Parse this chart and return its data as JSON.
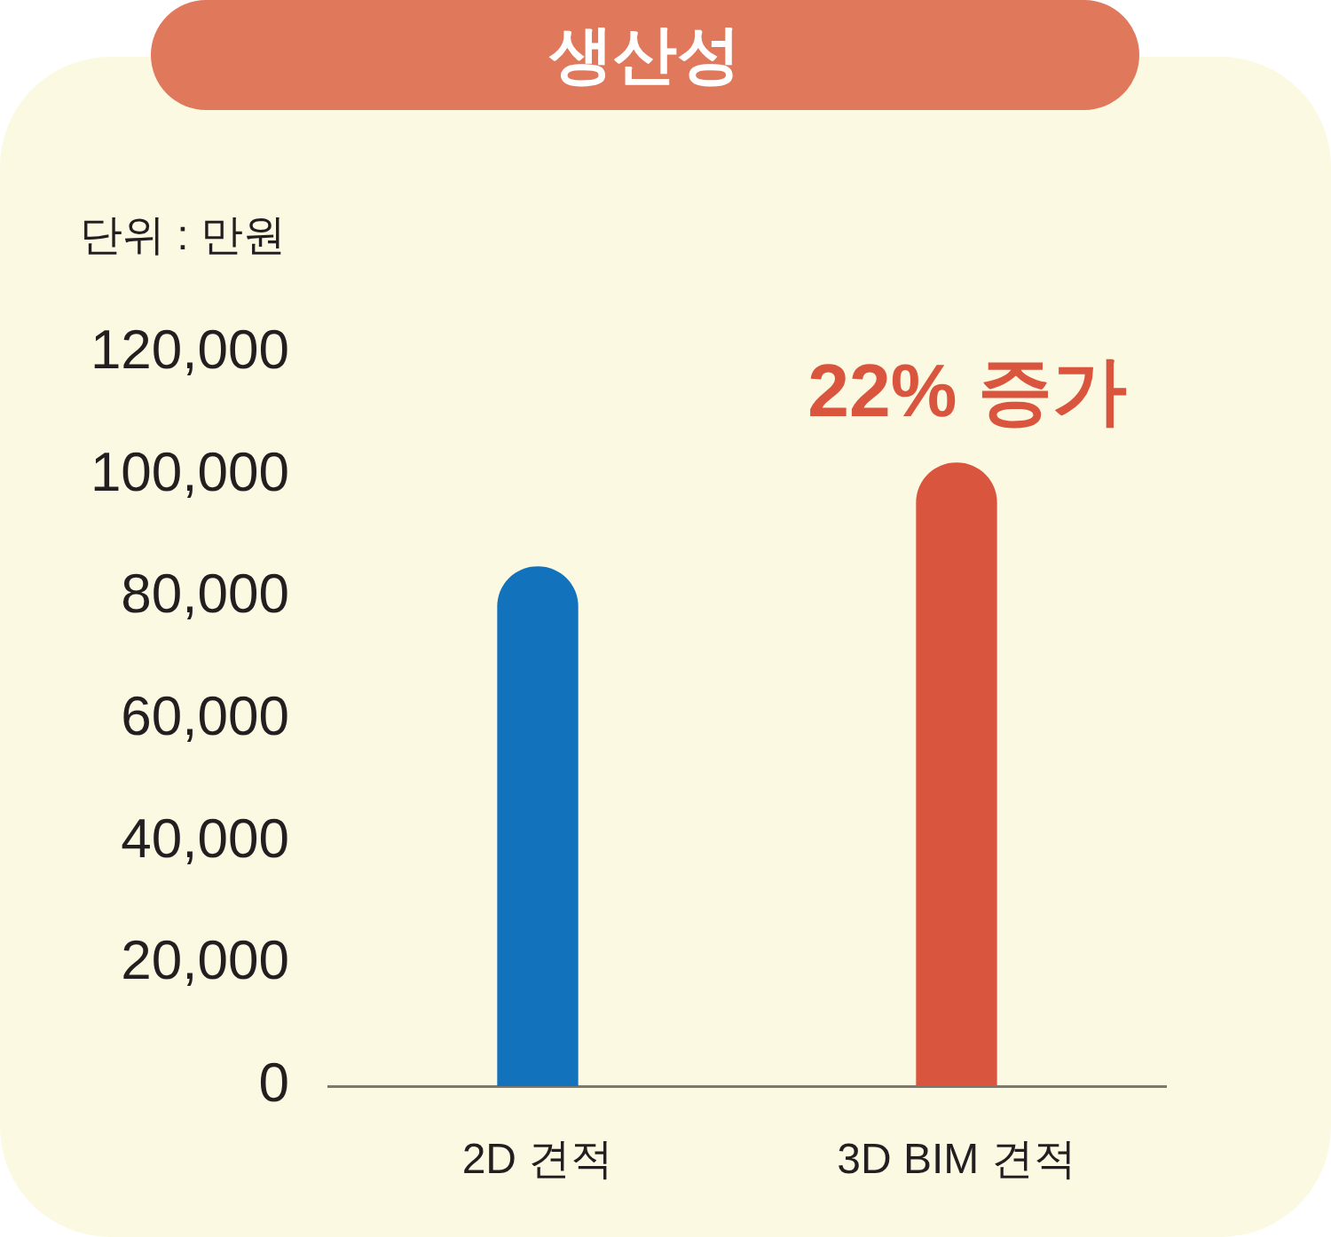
{
  "chart_data": {
    "type": "bar",
    "title": "생산성",
    "ylabel": "단위 : 만원",
    "categories": [
      "2D 견적",
      "3D BIM 견적"
    ],
    "values": [
      85000,
      102000
    ],
    "colors": [
      "#1273bc",
      "#d9553d"
    ],
    "ylim": [
      0,
      120000
    ],
    "yticks": [
      0,
      {
        "value": 20000,
        "label": "20,000"
      },
      {
        "value": 40000,
        "label": "40,000"
      },
      {
        "value": 60000,
        "label": "60,000"
      },
      {
        "value": 80000,
        "label": "80,000"
      },
      {
        "value": 100000,
        "label": "100,000"
      },
      {
        "value": 120000,
        "label": "120,000"
      }
    ],
    "annotations": [
      {
        "text": "22% 증가",
        "x": "3D BIM 견적",
        "y": 102000
      }
    ]
  }
}
